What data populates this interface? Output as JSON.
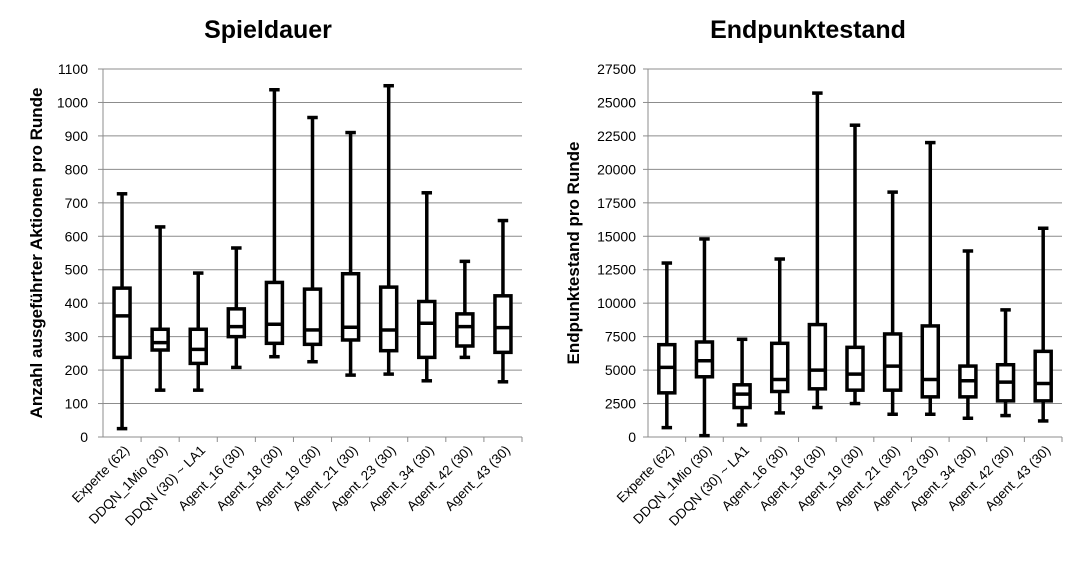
{
  "chart_data": [
    {
      "type": "box",
      "title": "Spieldauer",
      "ylabel": "Anzahl ausgeführter Aktionen pro Runde",
      "xlabel": "",
      "ylim": [
        0,
        1100
      ],
      "yticks": [
        0,
        100,
        200,
        300,
        400,
        500,
        600,
        700,
        800,
        900,
        1000,
        1100
      ],
      "grid": true,
      "categories": [
        "Experte (62)",
        "DDQN_1Mio (30)",
        "DDQN (30) ~ LA1",
        "Agent_16 (30)",
        "Agent_18 (30)",
        "Agent_19 (30)",
        "Agent_21 (30)",
        "Agent_23 (30)",
        "Agent_34 (30)",
        "Agent_42 (30)",
        "Agent_43 (30)"
      ],
      "min": [
        25,
        140,
        140,
        208,
        240,
        225,
        185,
        188,
        168,
        238,
        165
      ],
      "q1": [
        238,
        260,
        220,
        300,
        280,
        277,
        290,
        258,
        238,
        272,
        253
      ],
      "median": [
        362,
        282,
        262,
        330,
        337,
        320,
        328,
        320,
        340,
        330,
        327
      ],
      "q3": [
        445,
        322,
        322,
        383,
        462,
        442,
        488,
        448,
        405,
        368,
        422
      ],
      "max": [
        727,
        628,
        490,
        565,
        1038,
        955,
        910,
        1050,
        730,
        525,
        647
      ]
    },
    {
      "type": "box",
      "title": "Endpunktestand",
      "ylabel": "Endpunktestand pro Runde",
      "xlabel": "",
      "ylim": [
        0,
        27500
      ],
      "yticks": [
        0,
        2500,
        5000,
        7500,
        10000,
        12500,
        15000,
        17500,
        20000,
        22500,
        25000,
        27500
      ],
      "grid": true,
      "categories": [
        "Experte (62)",
        "DDQN_1Mio (30)",
        "DDQN (30) ~ LA1",
        "Agent_16 (30)",
        "Agent_18 (30)",
        "Agent_19 (30)",
        "Agent_21 (30)",
        "Agent_23 (30)",
        "Agent_34 (30)",
        "Agent_42 (30)",
        "Agent_43 (30)"
      ],
      "min": [
        700,
        100,
        900,
        1800,
        2200,
        2500,
        1700,
        1700,
        1400,
        1600,
        1200
      ],
      "q1": [
        3300,
        4500,
        2200,
        3400,
        3600,
        3500,
        3500,
        3000,
        3000,
        2700,
        2700
      ],
      "median": [
        5200,
        5700,
        3200,
        4300,
        5000,
        4700,
        5300,
        4300,
        4200,
        4100,
        4000
      ],
      "q3": [
        6900,
        7100,
        3900,
        7000,
        8400,
        6700,
        7700,
        8300,
        5300,
        5400,
        6400
      ],
      "max": [
        13000,
        14800,
        7300,
        13300,
        25700,
        23300,
        18300,
        22000,
        13900,
        9500,
        15600
      ]
    }
  ]
}
